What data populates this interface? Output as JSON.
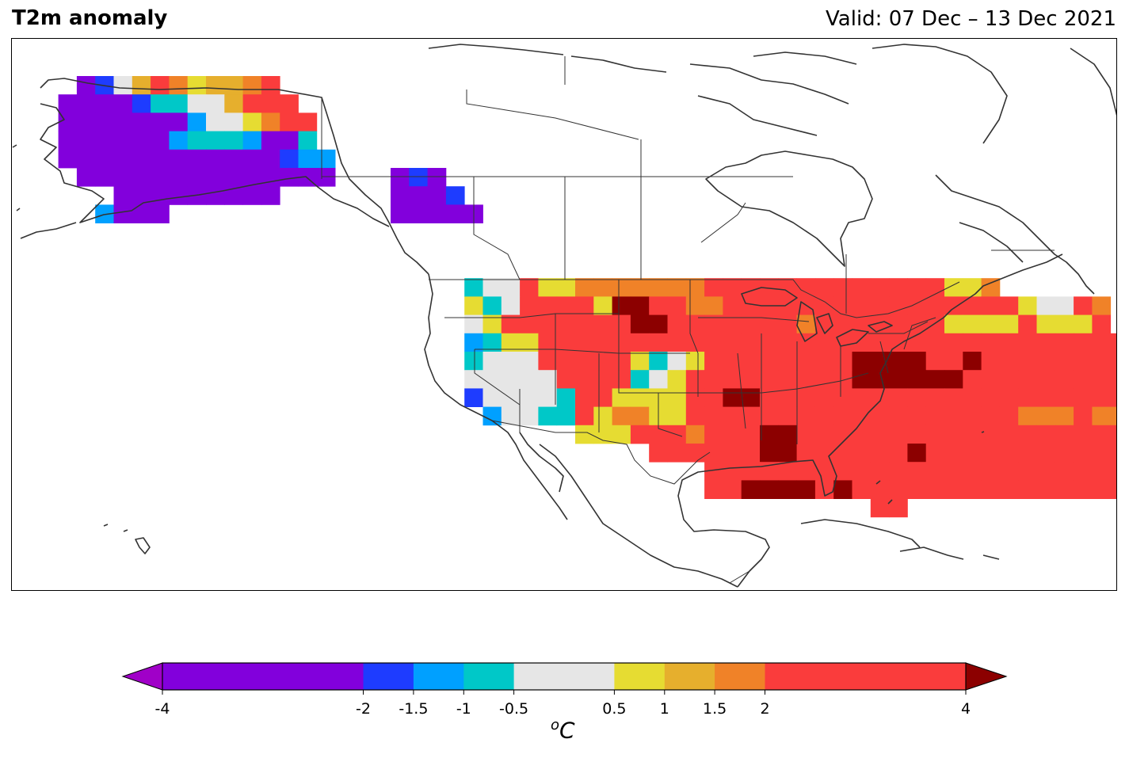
{
  "header": {
    "title": "T2m anomaly",
    "valid": "Valid: 07 Dec – 13 Dec 2021"
  },
  "colorbar": {
    "unit_sup": "o",
    "unit": "C",
    "levels": [
      -4,
      -2,
      -1.5,
      -1,
      -0.5,
      0.5,
      1,
      1.5,
      2,
      4
    ],
    "tick_labels": [
      "-4",
      "-2",
      "-1.5",
      "-1",
      "-0.5",
      "0.5",
      "1",
      "1.5",
      "2",
      "4"
    ],
    "colors": [
      "#8200dc",
      "#1e3cff",
      "#00a0ff",
      "#00c8c8",
      "#e6e6e6",
      "#e6dc32",
      "#e6af2d",
      "#f08228",
      "#fa3c3c"
    ],
    "under_color": "#a000c8",
    "over_color": "#8c0000"
  },
  "map": {
    "palette": {
      "P": "#8200dc",
      "B": "#1e3cff",
      "S": "#00a0ff",
      "C": "#00c8c8",
      "W": "#e6e6e6",
      "Y": "#e6dc32",
      "G": "#e6af2d",
      "O": "#f08228",
      "R": "#fa3c3c",
      "D": "#8c0000",
      "V": "#a000c8"
    },
    "grid_origin_col": 1,
    "grid_origin_row": 1,
    "rows": [
      "...PBWGROYGGOR......................................................................",
      "..PPPPBCCWWGRRR.....................................................................",
      "..PPPPPPPSWWYORR....................................................................",
      "..PPPPPPSCCCSPPC....................................................................",
      "..PPPPPPPPPPPPBSS...................................................................",
      "...PPPPPPPPPPPPPP...PBP.............................................................",
      ".....PPPPPPPPP......PPPB............................................................",
      "....SPPP............PPPPP...........................................................",
      "....................................................................................",
      "....................................................................................",
      "....................................................................................",
      "........................CWWRYYOOOOOOORRRRRRRRRRRRRYYO...............................",
      "........................YCWRRRRYDDRROORRRRRRRRRRRRRRRRYWWRO.............ROO..........",
      "........................WYRRRRRRRDDRRRRRRRORRRRRRRYYYYRYYYR.........RRRRRRRRO........",
      "........................SCYYRRRRRRRRRRRRRRRRRRRRRRRRRRRRRRRRRRRRRRRRRRRRRRRRRR.......",
      "........................CWWWRRRRRYCWYRRRRRRRRDDDDRRDRRRRRRRRRRRRRRRRRRRRRR..........",
      "........................WWWWWRRRRCWYRRRRRRRRRDDDDDDRRRRRRRRRRRRRRRRRRRYYYYG.........",
      "........................BWWWWCRRYYYYRRDDRRRRRRRRRRRRRRRRRRRRRRRRRRRRRRYYYW..........",
      ".........................SWWCCRYOOYYRRRRRRRRRRRRRRRRRROOOROOYYYGGG..................",
      "..............................YYYRRRORRRDDRRRRRRRRRRRRRRRRRRRRRRRR..................",
      "..................................RRRRRRDDRRRRRRDRRRRRRRRRRRRRDDRRR..................",
      ".....................................RRRRRRRRRRRRRRRRRRRRRRRRRDDDR...................",
      ".....................................RRDDDDRDRRRRRRRRRRRRRRRRRRRDDR..................",
      "..............................................RR..............................RRR....."
    ]
  }
}
